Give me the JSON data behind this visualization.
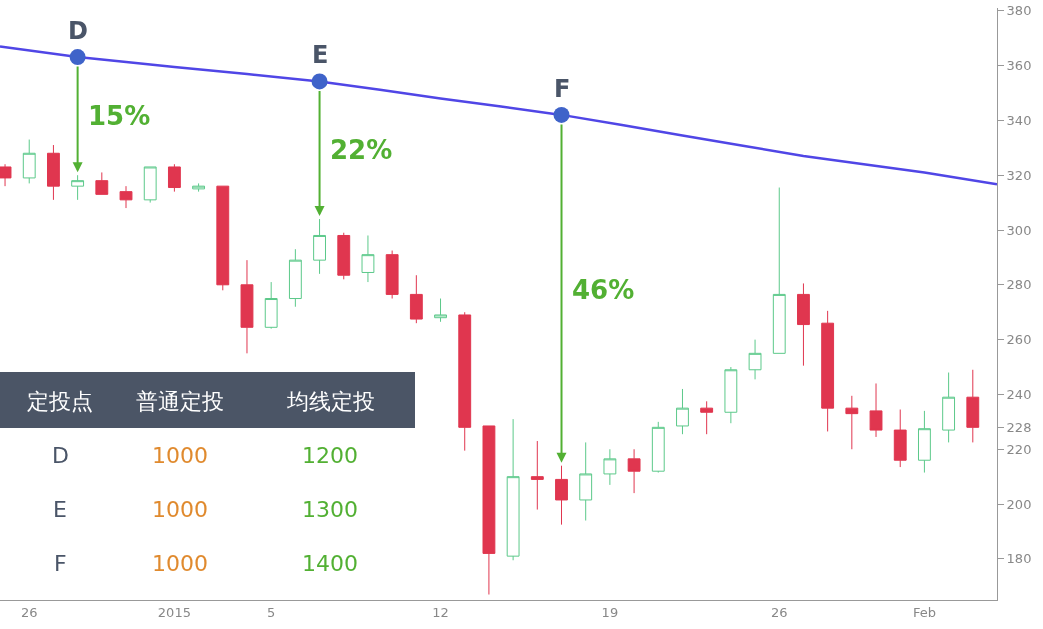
{
  "chart_data": {
    "type": "candlestick",
    "x": [
      "2014-12-25",
      "2014-12-26",
      "2014-12-27",
      "2014-12-28",
      "2014-12-29",
      "2014-12-30",
      "2014-12-31",
      "2015-01-01",
      "2015-01-02",
      "2015-01-03",
      "2015-01-04",
      "2015-01-05",
      "2015-01-06",
      "2015-01-07",
      "2015-01-08",
      "2015-01-09",
      "2015-01-10",
      "2015-01-11",
      "2015-01-12",
      "2015-01-13",
      "2015-01-14",
      "2015-01-15",
      "2015-01-16",
      "2015-01-17",
      "2015-01-18",
      "2015-01-19",
      "2015-01-20",
      "2015-01-21",
      "2015-01-22",
      "2015-01-23",
      "2015-01-24",
      "2015-01-25",
      "2015-01-26",
      "2015-01-27",
      "2015-01-28",
      "2015-01-29",
      "2015-01-30",
      "2015-01-31",
      "2015-02-01",
      "2015-02-02",
      "2015-02-03"
    ],
    "ohlc": [
      [
        323,
        324,
        316,
        319
      ],
      [
        319,
        333,
        317,
        328
      ],
      [
        328,
        331,
        311,
        316
      ],
      [
        316,
        320,
        311,
        318
      ],
      [
        318,
        321,
        313,
        313
      ],
      [
        314,
        316,
        308,
        311
      ],
      [
        311,
        323,
        310,
        323
      ],
      [
        323,
        324,
        314,
        315.5
      ],
      [
        315,
        317,
        314,
        316
      ],
      [
        316,
        316,
        278,
        280
      ],
      [
        280,
        289,
        255,
        264.5
      ],
      [
        264.5,
        281,
        264,
        275
      ],
      [
        275,
        293,
        272,
        289
      ],
      [
        289,
        304,
        284,
        298
      ],
      [
        298,
        299,
        282,
        283.5
      ],
      [
        284.5,
        298,
        281,
        291
      ],
      [
        291,
        292.5,
        275,
        276.5
      ],
      [
        276.5,
        283.5,
        266,
        267.5
      ],
      [
        268,
        275,
        266.5,
        269
      ],
      [
        269,
        270,
        219.5,
        228
      ],
      [
        228.5,
        228.5,
        167,
        182
      ],
      [
        181,
        231,
        179.5,
        210
      ],
      [
        210,
        223,
        198,
        209
      ],
      [
        209,
        214,
        192.5,
        201.5
      ],
      [
        201.5,
        222.5,
        194,
        211
      ],
      [
        211,
        220,
        207,
        216.5
      ],
      [
        216.5,
        220,
        204,
        212
      ],
      [
        212,
        230,
        211.5,
        228
      ],
      [
        228.5,
        242,
        225.5,
        235
      ],
      [
        235,
        237.5,
        225.5,
        233.5
      ],
      [
        233.5,
        250,
        229.5,
        249
      ],
      [
        249,
        260,
        245.5,
        255
      ],
      [
        255,
        315.5,
        255,
        276.5
      ],
      [
        276.5,
        280.5,
        250.5,
        265.5
      ],
      [
        266,
        270.5,
        226.5,
        235
      ],
      [
        235,
        239.5,
        220,
        233
      ],
      [
        234,
        244,
        224.5,
        227
      ],
      [
        227,
        234.5,
        213.5,
        216
      ],
      [
        216,
        234,
        211.5,
        227.5
      ],
      [
        227,
        248,
        222.5,
        239
      ],
      [
        239,
        249,
        222.5,
        228
      ]
    ],
    "series": [
      {
        "type": "line",
        "color": "#5046e6",
        "x": [
          "2014-12-24T19:00",
          "2014-12-28",
          "2015-01-01",
          "2015-01-07",
          "2015-01-12",
          "2015-01-17",
          "2015-01-22",
          "2015-01-27",
          "2015-02-01",
          "2015-02-04"
        ],
        "values": [
          367,
          363.1,
          359.5,
          354.2,
          348,
          342,
          334.5,
          327,
          321,
          316.7
        ]
      }
    ],
    "annotations": [
      {
        "text": "D",
        "x": "2014-12-28",
        "y": 363.1
      },
      {
        "text": "E",
        "x": "2015-01-07",
        "y": 354.2
      },
      {
        "text": "F",
        "x": "2015-01-17",
        "y": 342
      },
      "15%",
      "22%",
      "46%",
      "定投点",
      "普通定投",
      "均线定投",
      "D",
      "1000",
      "1200",
      "E",
      "1000",
      "1300",
      "F",
      "1000",
      "1400"
    ],
    "xlim": [
      "2014-12-24T19:00",
      "2015-02-04T00:00"
    ],
    "xticks": [
      {
        "value": "2014-12-26",
        "label": "26"
      },
      {
        "value": "2015-01-01",
        "label": "2015"
      },
      {
        "value": "2015-01-05",
        "label": "5"
      },
      {
        "value": "2015-01-12",
        "label": "12"
      },
      {
        "value": "2015-01-19",
        "label": "19"
      },
      {
        "value": "2015-01-26",
        "label": "26"
      },
      {
        "value": "2015-02-01",
        "label": "Feb"
      }
    ],
    "ylim": [
      165,
      381
    ],
    "yticks": [
      180,
      200,
      220,
      228,
      240,
      260,
      280,
      300,
      320,
      340,
      360,
      380
    ]
  }
}
